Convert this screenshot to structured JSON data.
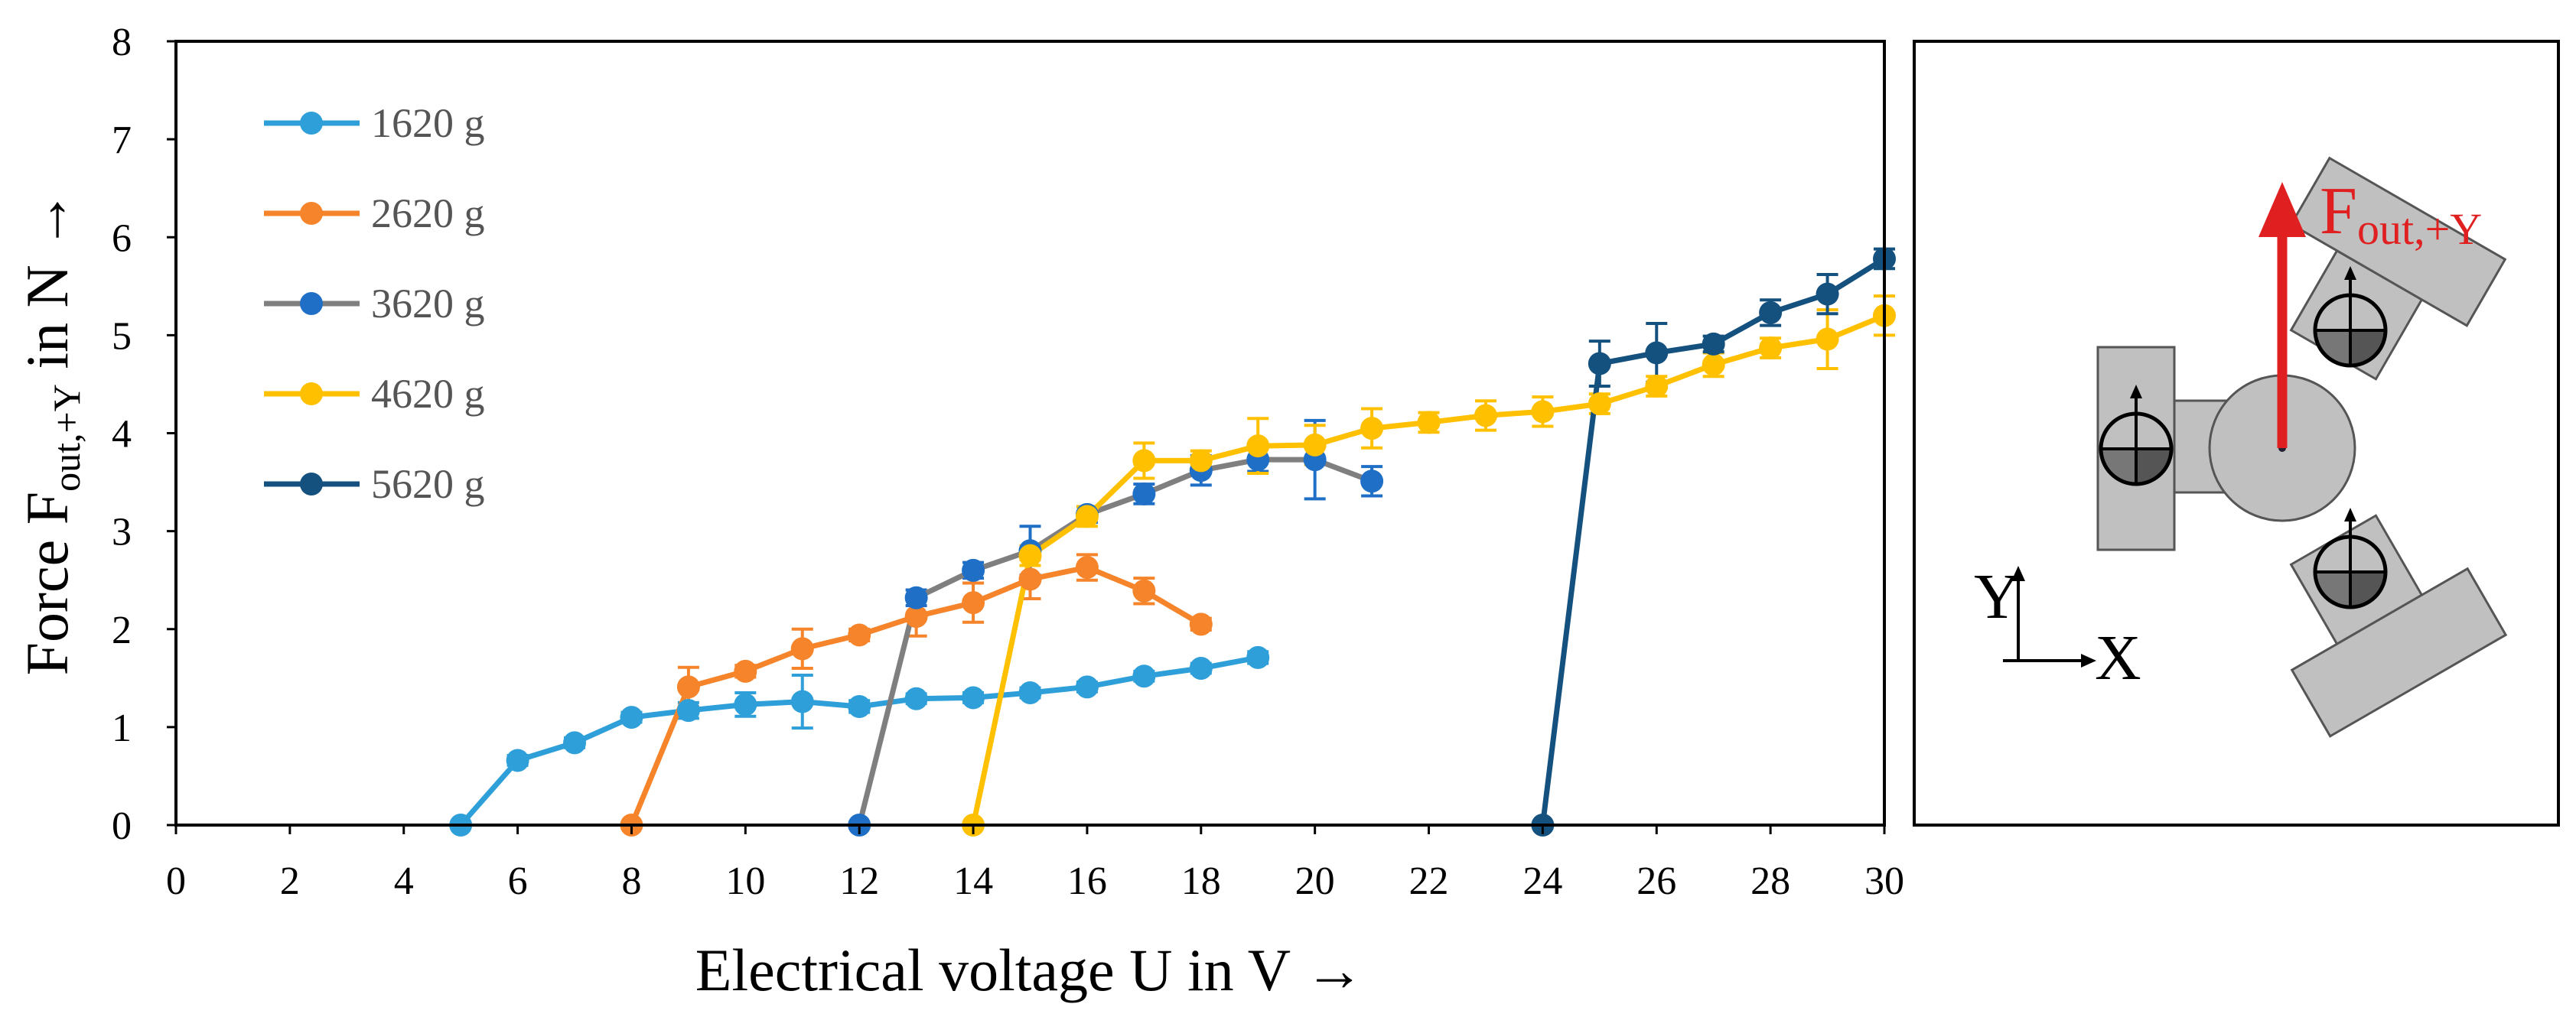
{
  "chart_data": {
    "type": "line",
    "xlabel": "Electrical voltage U in V →",
    "ylabel_prefix": "Force F",
    "ylabel_sub": "out,+Y",
    "ylabel_suffix": " in N →",
    "xlim": [
      0,
      30
    ],
    "ylim": [
      0,
      8
    ],
    "xticks": [
      0,
      2,
      4,
      6,
      8,
      10,
      12,
      14,
      16,
      18,
      20,
      22,
      24,
      26,
      28,
      30
    ],
    "yticks": [
      0,
      1,
      2,
      3,
      4,
      5,
      6,
      7,
      8
    ],
    "grid": false,
    "legend_position": "top-left",
    "series": [
      {
        "name": "1620 g",
        "color": "#2e9fd8",
        "x": [
          5,
          6,
          7,
          8,
          9,
          10,
          11,
          12,
          13,
          14,
          15,
          16,
          17,
          18,
          19
        ],
        "y": [
          0,
          0.66,
          0.84,
          1.1,
          1.17,
          1.23,
          1.26,
          1.21,
          1.29,
          1.3,
          1.35,
          1.41,
          1.52,
          1.6,
          1.71
        ],
        "err": [
          0,
          0.05,
          0.05,
          0.05,
          0.08,
          0.12,
          0.27,
          0.06,
          0.05,
          0.05,
          0.05,
          0.05,
          0.05,
          0.05,
          0.06
        ]
      },
      {
        "name": "2620 g",
        "color": "#f5842a",
        "x": [
          8,
          9,
          10,
          11,
          12,
          13,
          14,
          15,
          16,
          17,
          18
        ],
        "y": [
          0,
          1.41,
          1.57,
          1.8,
          1.94,
          2.13,
          2.27,
          2.51,
          2.63,
          2.39,
          2.05
        ],
        "err": [
          0,
          0.2,
          0.06,
          0.2,
          0.06,
          0.2,
          0.2,
          0.2,
          0.13,
          0.13,
          0.06
        ]
      },
      {
        "name": "3620 g",
        "color": "#7f7f7f",
        "marker_color": "#1f6fc6",
        "x": [
          12,
          13,
          14,
          15,
          16,
          17,
          18,
          19,
          20,
          21
        ],
        "y": [
          0,
          2.32,
          2.6,
          2.8,
          3.17,
          3.38,
          3.62,
          3.73,
          3.73,
          3.51
        ],
        "err": [
          0,
          0.08,
          0.08,
          0.25,
          0.08,
          0.1,
          0.15,
          0.12,
          0.4,
          0.15
        ]
      },
      {
        "name": "4620 g",
        "color": "#ffc000",
        "x": [
          14,
          15,
          16,
          17,
          18,
          19,
          20,
          21,
          22,
          23,
          24,
          25,
          26,
          27,
          28,
          29,
          30
        ],
        "y": [
          0,
          2.75,
          3.15,
          3.72,
          3.72,
          3.87,
          3.88,
          4.05,
          4.11,
          4.18,
          4.22,
          4.3,
          4.48,
          4.7,
          4.87,
          4.96,
          5.2
        ],
        "err": [
          0,
          0.1,
          0.1,
          0.18,
          0.1,
          0.28,
          0.2,
          0.2,
          0.1,
          0.15,
          0.15,
          0.1,
          0.1,
          0.12,
          0.1,
          0.3,
          0.2
        ]
      },
      {
        "name": "5620 g",
        "color": "#15517f",
        "x": [
          24,
          25,
          26,
          27,
          28,
          29,
          30
        ],
        "y": [
          0,
          4.71,
          4.82,
          4.91,
          5.23,
          5.42,
          5.78
        ],
        "err": [
          0,
          0.23,
          0.3,
          0.08,
          0.13,
          0.2,
          0.1
        ]
      }
    ]
  },
  "inset": {
    "force_label": "F",
    "force_sub": "out,+Y",
    "axis_y_label": "Y",
    "axis_x_label": "X",
    "arrow_color": "#e02020"
  }
}
